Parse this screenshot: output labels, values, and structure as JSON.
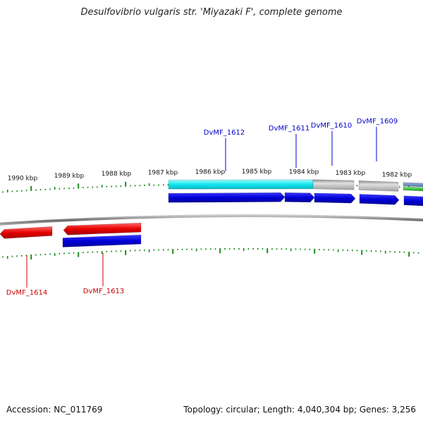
{
  "title": "Desulfovibrio vulgaris str. 'Miyazaki F', complete genome",
  "footer": {
    "accession": "Accession: NC_011769",
    "summary": "Topology: circular; Length: 4,040,304 bp; Genes: 3,256"
  },
  "ticks": [
    {
      "label": "1990 kbp"
    },
    {
      "label": "1989 kbp"
    },
    {
      "label": "1988 kbp"
    },
    {
      "label": "1987 kbp"
    },
    {
      "label": "1986 kbp"
    },
    {
      "label": "1985 kbp"
    },
    {
      "label": "1984 kbp"
    },
    {
      "label": "1983 kbp"
    },
    {
      "label": "1982 kbp"
    }
  ],
  "genes": [
    {
      "id": "DvMF_1614",
      "color": "#cc0000"
    },
    {
      "id": "DvMF_1613",
      "color": "#cc0000"
    },
    {
      "id": "DvMF_1612",
      "color": "#0000cc"
    },
    {
      "id": "DvMF_1611",
      "color": "#0000cc"
    },
    {
      "id": "DvMF_1610",
      "color": "#0000cc"
    },
    {
      "id": "DvMF_1609",
      "color": "#0000cc"
    }
  ],
  "colors": {
    "backbone": "#808080",
    "forward_cds": "#0000dd",
    "reverse_cds": "#ee1111",
    "rna_feature": "#00e5e5",
    "gene_feature": "#b0b0b0",
    "tick": "#1b8a1b"
  }
}
